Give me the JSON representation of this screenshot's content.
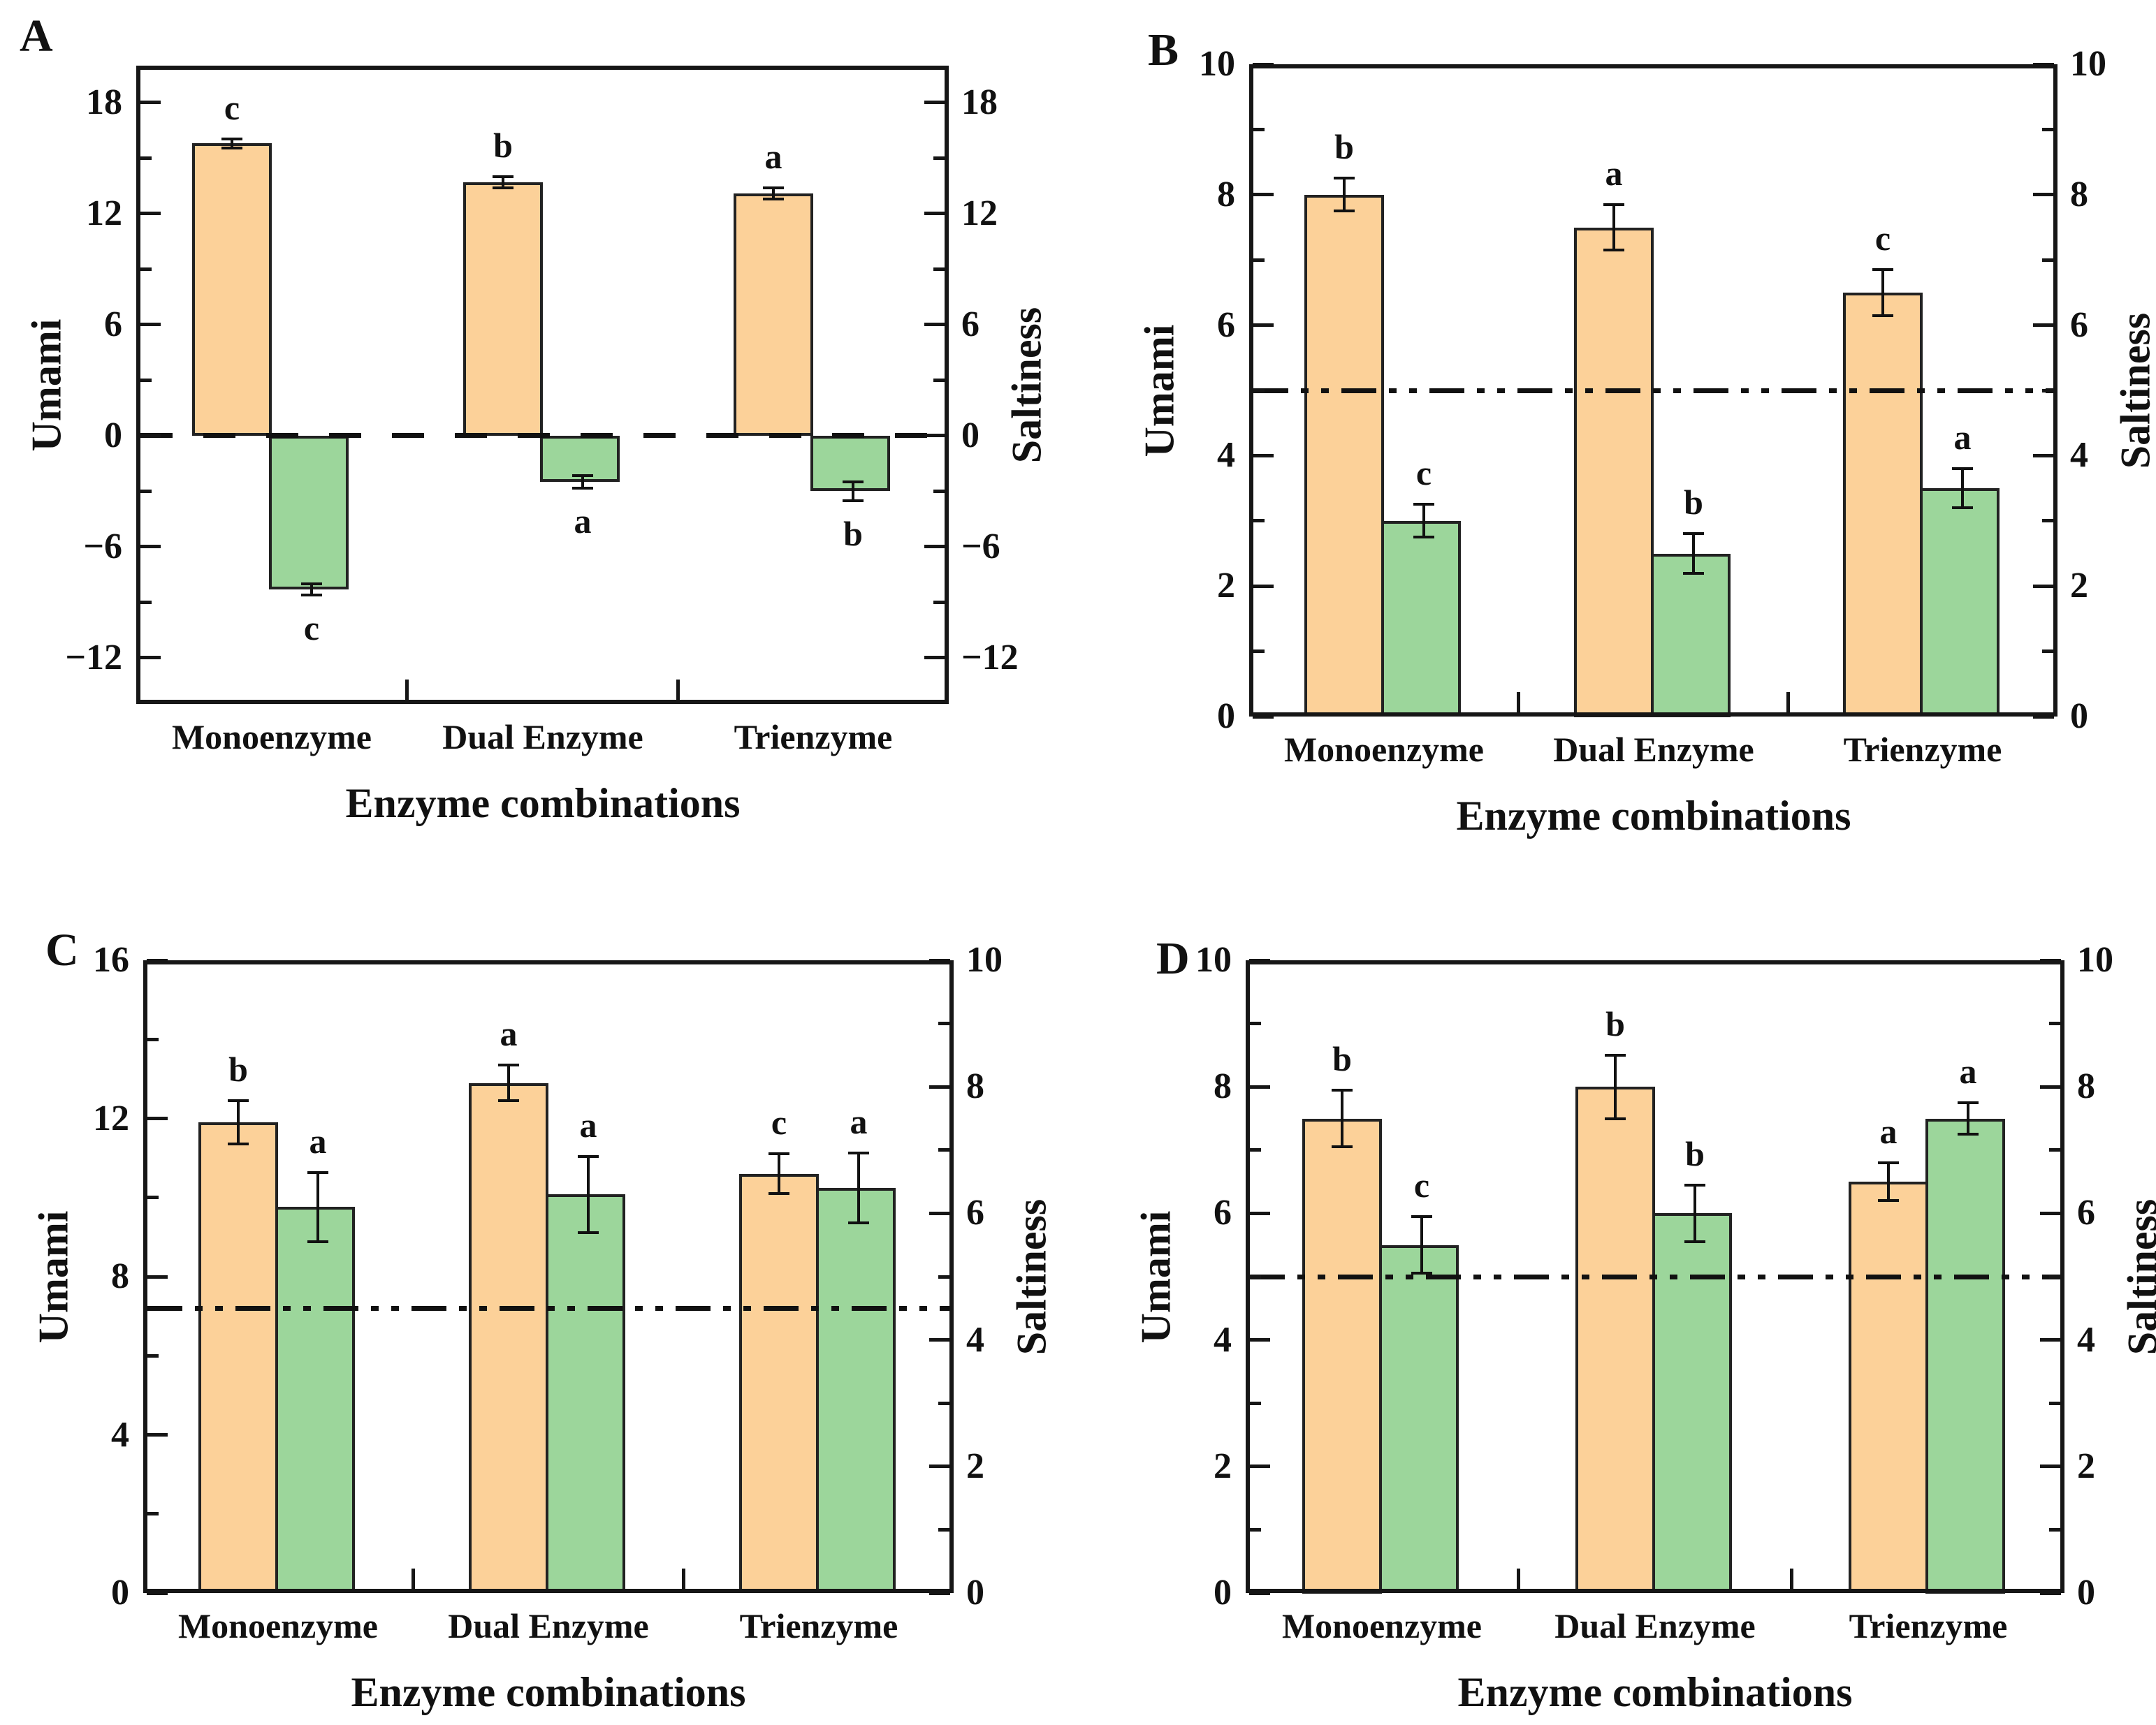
{
  "background": "#ffffff",
  "colors": {
    "umami_fill": "#FCD199",
    "saltiness_fill": "#9CD69B",
    "outline": "#222222",
    "axis": "#161616",
    "text": "#111111"
  },
  "chart_data": [
    {
      "id": "A",
      "panel_label": "A",
      "type": "bar",
      "title": "",
      "xlabel": "Enzyme combinations",
      "ylabel_left": "Umami",
      "ylabel_right": "Saltiness",
      "categories": [
        "Monoenzyme",
        "Dual Enzyme",
        "Trienzyme"
      ],
      "left_axis": {
        "min": -14.5,
        "max": 20,
        "majors": [
          18,
          12,
          6,
          0,
          -6,
          -12
        ],
        "labels": [
          "18",
          "12",
          "6",
          "0",
          "−6",
          "−12"
        ],
        "minors": [
          15,
          9,
          3,
          -3,
          -9
        ]
      },
      "right_axis": {
        "min": -14.5,
        "max": 20,
        "majors": [
          18,
          12,
          6,
          0,
          -6,
          -12
        ],
        "labels": [
          "18",
          "12",
          "6",
          "0",
          "−6",
          "−12"
        ],
        "minors": [
          15,
          9,
          3,
          -3,
          -9
        ]
      },
      "series": [
        {
          "name": "Umami",
          "axis": "left",
          "color_key": "umami_fill",
          "values": [
            15.8,
            13.7,
            13.1
          ],
          "errors": [
            0.25,
            0.3,
            0.3
          ],
          "letters": [
            "c",
            "b",
            "a"
          ],
          "letters_below": false
        },
        {
          "name": "Saltiness",
          "axis": "right",
          "color_key": "saltiness_fill",
          "values": [
            -8.3,
            -2.5,
            -3.0
          ],
          "errors": [
            0.3,
            0.35,
            0.5
          ],
          "letters": [
            "c",
            "a",
            "b"
          ],
          "letters_below": true
        }
      ],
      "ref_line": {
        "axis": "left",
        "value": 0,
        "style": "dashed"
      },
      "grid": false,
      "legend": null
    },
    {
      "id": "B",
      "panel_label": "B",
      "type": "bar",
      "title": "",
      "xlabel": "Enzyme combinations",
      "ylabel_left": "Umami",
      "ylabel_right": "Saltiness",
      "categories": [
        "Monoenzyme",
        "Dual Enzyme",
        "Trienzyme"
      ],
      "left_axis": {
        "min": 0,
        "max": 10,
        "majors": [
          10,
          8,
          6,
          4,
          2,
          0
        ],
        "labels": [
          "10",
          "8",
          "6",
          "4",
          "2",
          "0"
        ],
        "minors": [
          9,
          7,
          5,
          3,
          1
        ]
      },
      "right_axis": {
        "min": 0,
        "max": 10,
        "majors": [
          10,
          8,
          6,
          4,
          2,
          0
        ],
        "labels": [
          "10",
          "8",
          "6",
          "4",
          "2",
          "0"
        ],
        "minors": [
          9,
          7,
          5,
          3,
          1
        ]
      },
      "series": [
        {
          "name": "Umami",
          "axis": "left",
          "color_key": "umami_fill",
          "values": [
            8.0,
            7.5,
            6.5
          ],
          "errors": [
            0.25,
            0.35,
            0.35
          ],
          "letters": [
            "b",
            "a",
            "c"
          ],
          "letters_below": false
        },
        {
          "name": "Saltiness",
          "axis": "right",
          "color_key": "saltiness_fill",
          "values": [
            3.0,
            2.5,
            3.5
          ],
          "errors": [
            0.25,
            0.3,
            0.3
          ],
          "letters": [
            "c",
            "b",
            "a"
          ],
          "letters_below": false
        }
      ],
      "ref_line": {
        "axis": "left",
        "value": 5,
        "style": "dashdotdot"
      },
      "grid": false,
      "legend": null
    },
    {
      "id": "C",
      "panel_label": "C",
      "type": "bar",
      "title": "",
      "xlabel": "Enzyme combinations",
      "ylabel_left": "Umami",
      "ylabel_right": "Saltiness",
      "categories": [
        "Monoenzyme",
        "Dual Enzyme",
        "Trienzyme"
      ],
      "left_axis": {
        "min": 0,
        "max": 16,
        "majors": [
          16,
          12,
          8,
          4,
          0
        ],
        "labels": [
          "16",
          "12",
          "8",
          "4",
          "0"
        ],
        "minors": [
          14,
          10,
          6,
          2
        ]
      },
      "right_axis": {
        "min": 0,
        "max": 10,
        "majors": [
          10,
          8,
          6,
          4,
          2,
          0
        ],
        "labels": [
          "10",
          "8",
          "6",
          "4",
          "2",
          "0"
        ],
        "minors": [
          9,
          7,
          5,
          3,
          1
        ]
      },
      "series": [
        {
          "name": "Umami",
          "axis": "left",
          "color_key": "umami_fill",
          "values": [
            11.9,
            12.9,
            10.6
          ],
          "errors": [
            0.55,
            0.45,
            0.5
          ],
          "letters": [
            "b",
            "a",
            "c"
          ],
          "letters_below": false
        },
        {
          "name": "Saltiness",
          "axis": "right",
          "color_key": "saltiness_fill",
          "values": [
            6.1,
            6.3,
            6.4
          ],
          "errors": [
            0.55,
            0.6,
            0.55
          ],
          "letters": [
            "a",
            "a",
            "a"
          ],
          "letters_below": false
        }
      ],
      "ref_line": {
        "axis": "right",
        "value": 4.5,
        "style": "dashdotdot"
      },
      "grid": false,
      "legend": null
    },
    {
      "id": "D",
      "panel_label": "D",
      "type": "bar",
      "title": "",
      "xlabel": "Enzyme combinations",
      "ylabel_left": "Umami",
      "ylabel_right": "Saltiness",
      "categories": [
        "Monoenzyme",
        "Dual Enzyme",
        "Trienzyme"
      ],
      "left_axis": {
        "min": 0,
        "max": 10,
        "majors": [
          10,
          8,
          6,
          4,
          2,
          0
        ],
        "labels": [
          "10",
          "8",
          "6",
          "4",
          "2",
          "0"
        ],
        "minors": [
          9,
          7,
          5,
          3,
          1
        ]
      },
      "right_axis": {
        "min": 0,
        "max": 10,
        "majors": [
          10,
          8,
          6,
          4,
          2,
          0
        ],
        "labels": [
          "10",
          "8",
          "6",
          "4",
          "2",
          "0"
        ],
        "minors": [
          9,
          7,
          5,
          3,
          1
        ]
      },
      "series": [
        {
          "name": "Umami",
          "axis": "left",
          "color_key": "umami_fill",
          "values": [
            7.5,
            8.0,
            6.5
          ],
          "errors": [
            0.45,
            0.5,
            0.3
          ],
          "letters": [
            "b",
            "b",
            "a"
          ],
          "letters_below": false
        },
        {
          "name": "Saltiness",
          "axis": "right",
          "color_key": "saltiness_fill",
          "values": [
            5.5,
            6.0,
            7.5
          ],
          "errors": [
            0.45,
            0.45,
            0.25
          ],
          "letters": [
            "c",
            "b",
            "a"
          ],
          "letters_below": false
        }
      ],
      "ref_line": {
        "axis": "left",
        "value": 5,
        "style": "dashdotdot"
      },
      "grid": false,
      "legend": null
    }
  ]
}
